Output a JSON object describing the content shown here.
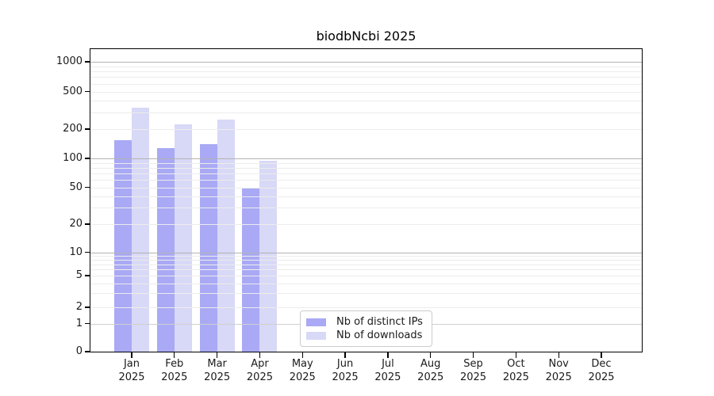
{
  "chart_data": {
    "type": "bar",
    "title": "biodbNcbi 2025",
    "x": {
      "months": [
        "Jan",
        "Feb",
        "Mar",
        "Apr",
        "May",
        "Jun",
        "Jul",
        "Aug",
        "Sep",
        "Oct",
        "Nov",
        "Dec"
      ],
      "year": "2025"
    },
    "y_axis": {
      "scale": "log-with-zero-baseline",
      "ticks": [
        0,
        1,
        2,
        5,
        10,
        20,
        50,
        100,
        200,
        500,
        1000
      ],
      "ylim": [
        0,
        1400
      ]
    },
    "grid": {
      "enabled": true,
      "major": [
        1,
        10,
        100,
        1000
      ],
      "minor": [
        2,
        3,
        4,
        5,
        6,
        7,
        8,
        9,
        20,
        30,
        40,
        50,
        60,
        70,
        80,
        90,
        200,
        300,
        400,
        500,
        600,
        700,
        800,
        900
      ]
    },
    "series": [
      {
        "name": "Nb of distinct IPs",
        "color": "#a9a9f5",
        "values": [
          155,
          128,
          140,
          49,
          0,
          0,
          0,
          0,
          0,
          0,
          0,
          0
        ]
      },
      {
        "name": "Nb of downloads",
        "color": "#d8d8f7",
        "values": [
          335,
          224,
          252,
          94,
          0,
          0,
          0,
          0,
          0,
          0,
          0,
          0
        ]
      }
    ],
    "legend": {
      "position": "inside-bottom-center",
      "entries": [
        "Nb of distinct IPs",
        "Nb of downloads"
      ]
    }
  },
  "colors": {
    "background": "#ffffff",
    "spine": "#000000",
    "text": "#1a1a1a",
    "grid_major": "#b3b3b3",
    "grid_minor": "#ececec",
    "grid_at_one": "#d0d0d0",
    "legend_border": "#cccccc"
  }
}
